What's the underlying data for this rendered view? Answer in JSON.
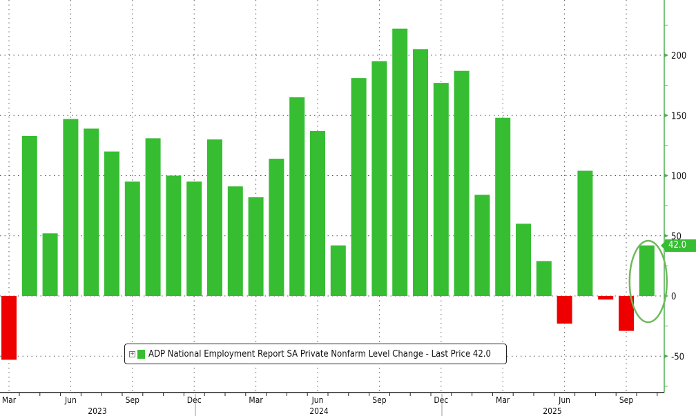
{
  "chart_data": {
    "type": "bar",
    "title": "",
    "xlabel": "",
    "ylabel": "",
    "ylim": [
      -60,
      245
    ],
    "yticks": [
      -50,
      0,
      50,
      100,
      150,
      200
    ],
    "grid": true,
    "legend_placement": "bottom-center",
    "categories": [
      "Mar 2023",
      "Apr 2023",
      "May 2023",
      "Jun 2023",
      "Jul 2023",
      "Aug 2023",
      "Sep 2023",
      "Oct 2023",
      "Nov 2023",
      "Dec 2023",
      "Jan 2024",
      "Feb 2024",
      "Mar 2024",
      "Apr 2024",
      "May 2024",
      "Jun 2024",
      "Jul 2024",
      "Aug 2024",
      "Sep 2024",
      "Oct 2024",
      "Nov 2024",
      "Dec 2024",
      "Jan 2025",
      "Feb 2025",
      "Mar 2025",
      "Apr 2025",
      "May 2025",
      "Jun 2025",
      "Jul 2025",
      "Aug 2025",
      "Sep 2025",
      "Oct 2025"
    ],
    "values": [
      -53,
      133,
      52,
      147,
      139,
      120,
      95,
      131,
      100,
      95,
      130,
      91,
      82,
      114,
      165,
      137,
      42,
      181,
      195,
      222,
      205,
      177,
      187,
      84,
      148,
      60,
      29,
      -23,
      104,
      -3,
      -29,
      42
    ],
    "month_labels": [
      "Mar",
      "Jun",
      "Sep",
      "Dec",
      "Mar",
      "Jun",
      "Sep",
      "Dec",
      "Mar",
      "Jun",
      "Sep"
    ],
    "month_label_indices": [
      0,
      3,
      6,
      9,
      12,
      15,
      18,
      21,
      24,
      27,
      30
    ],
    "year_labels": [
      "2023",
      "2024",
      "2025"
    ],
    "series": [
      {
        "name": "ADP National Employment Report SA Private Nonfarm Level Change - Last Price 42.0"
      }
    ],
    "last_value_label": "42.0",
    "colors": {
      "positive": "#36bd32",
      "negative": "#ee0000",
      "axis": "#4caf50",
      "highlight_ellipse": "#6fb95a"
    }
  }
}
